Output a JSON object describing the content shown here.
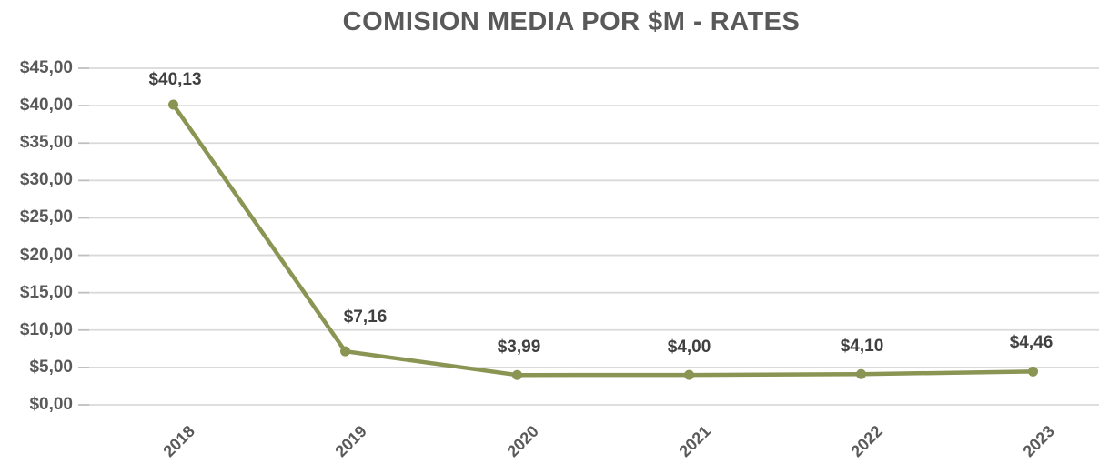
{
  "chart_data": {
    "type": "line",
    "title": "COMISION MEDIA POR $M - RATES",
    "categories": [
      "2018",
      "2019",
      "2020",
      "2021",
      "2022",
      "2023"
    ],
    "series": [
      {
        "name": "",
        "values": [
          40.13,
          7.16,
          3.99,
          4.0,
          4.1,
          4.46
        ],
        "data_labels": [
          "$40,13",
          "$7,16",
          "$3,99",
          "$4,00",
          "$4,10",
          "$4,46"
        ]
      }
    ],
    "xlabel": "",
    "ylabel": "",
    "ylim": [
      0,
      45
    ],
    "y_tick_step": 5,
    "y_ticks": [
      0,
      5,
      10,
      15,
      20,
      25,
      30,
      35,
      40,
      45
    ],
    "y_tick_labels": [
      "$0,00",
      "$5,00",
      "$10,00",
      "$15,00",
      "$20,00",
      "$25,00",
      "$30,00",
      "$35,00",
      "$40,00",
      "$45,00"
    ],
    "grid": true,
    "legend_position": "none",
    "marker": "circle",
    "colors": {
      "line": "#8a9453",
      "marker": "#8a9453",
      "gridline": "#d9d9d9",
      "tick_mark": "#bfbfbf",
      "title": "#595959",
      "axis_labels": "#595959",
      "data_labels": "#404040"
    }
  }
}
